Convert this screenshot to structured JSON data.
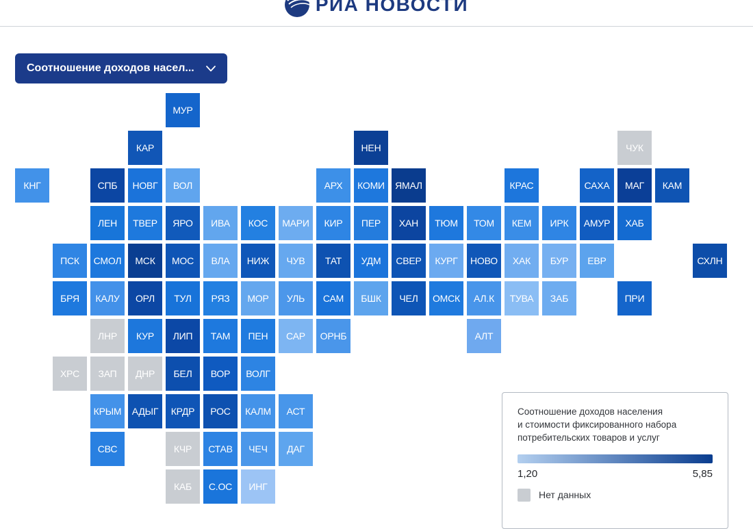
{
  "header": {
    "logo_text": "РИА НОВОСТИ"
  },
  "dropdown": {
    "label": "Соотношение доходов насел..."
  },
  "legend": {
    "title_line1": "Соотношение доходов населения",
    "title_line2": "и стоимости фиксированного набора",
    "title_line3": "потребительских товаров и услуг",
    "min_label": "1,20",
    "max_label": "5,85",
    "gradient_from": "#b3cfef",
    "gradient_to": "#0a3d8f",
    "no_data_label": "Нет данных",
    "no_data_color": "#c9cdd2"
  },
  "chart_data": {
    "type": "heatmap",
    "title": "Соотношение доходов населения и стоимости фиксированного набора потребительских товаров и услуг",
    "scale": {
      "min": 1.2,
      "max": 5.85
    },
    "no_data_label": "Нет данных",
    "tiles": [
      {
        "code": "МУР",
        "col": 4,
        "row": 0,
        "color": "#1465cb"
      },
      {
        "code": "КАР",
        "col": 3,
        "row": 1,
        "color": "#1156b6"
      },
      {
        "code": "НЕН",
        "col": 9,
        "row": 1,
        "color": "#0c4095"
      },
      {
        "code": "ЧУК",
        "col": 16,
        "row": 1,
        "color": "#c9cdd2"
      },
      {
        "code": "КНГ",
        "col": 0,
        "row": 2,
        "color": "#4292e9"
      },
      {
        "code": "СПБ",
        "col": 2,
        "row": 2,
        "color": "#0c46a3"
      },
      {
        "code": "НОВГ",
        "col": 3,
        "row": 2,
        "color": "#1b73da"
      },
      {
        "code": "ВОЛ",
        "col": 4,
        "row": 2,
        "color": "#60a5ee"
      },
      {
        "code": "АРХ",
        "col": 8,
        "row": 2,
        "color": "#3d90e8"
      },
      {
        "code": "КОМИ",
        "col": 9,
        "row": 2,
        "color": "#1e78dd"
      },
      {
        "code": "ЯМАЛ",
        "col": 10,
        "row": 2,
        "color": "#0a3c8e"
      },
      {
        "code": "КРАС",
        "col": 13,
        "row": 2,
        "color": "#1d76dc"
      },
      {
        "code": "САХА",
        "col": 15,
        "row": 2,
        "color": "#1463c8"
      },
      {
        "code": "МАГ",
        "col": 16,
        "row": 2,
        "color": "#0b3f97"
      },
      {
        "code": "КАМ",
        "col": 17,
        "row": 2,
        "color": "#0f54b3"
      },
      {
        "code": "ЛЕН",
        "col": 2,
        "row": 3,
        "color": "#1875d9"
      },
      {
        "code": "ТВЕР",
        "col": 3,
        "row": 3,
        "color": "#1e79dd"
      },
      {
        "code": "ЯРО",
        "col": 4,
        "row": 3,
        "color": "#115abb"
      },
      {
        "code": "ИВА",
        "col": 5,
        "row": 3,
        "color": "#62a6ee"
      },
      {
        "code": "КОС",
        "col": 6,
        "row": 3,
        "color": "#2380e1"
      },
      {
        "code": "МАРИ",
        "col": 7,
        "row": 3,
        "color": "#6dacf0"
      },
      {
        "code": "КИР",
        "col": 8,
        "row": 3,
        "color": "#2e85e4"
      },
      {
        "code": "ПЕР",
        "col": 9,
        "row": 3,
        "color": "#247cdd"
      },
      {
        "code": "ХАН",
        "col": 10,
        "row": 3,
        "color": "#0c45a0"
      },
      {
        "code": "ТЮМ",
        "col": 11,
        "row": 3,
        "color": "#1e78dd"
      },
      {
        "code": "ТОМ",
        "col": 12,
        "row": 3,
        "color": "#3389e6"
      },
      {
        "code": "КЕМ",
        "col": 13,
        "row": 3,
        "color": "#3a8de7"
      },
      {
        "code": "ИРК",
        "col": 14,
        "row": 3,
        "color": "#2f85e4"
      },
      {
        "code": "АМУР",
        "col": 15,
        "row": 3,
        "color": "#115cc0"
      },
      {
        "code": "ХАБ",
        "col": 16,
        "row": 3,
        "color": "#146bd1"
      },
      {
        "code": "ПСК",
        "col": 1,
        "row": 4,
        "color": "#2f85e4"
      },
      {
        "code": "СМОЛ",
        "col": 2,
        "row": 4,
        "color": "#1d78dd"
      },
      {
        "code": "МСК",
        "col": 3,
        "row": 4,
        "color": "#0a3e91"
      },
      {
        "code": "МОС",
        "col": 4,
        "row": 4,
        "color": "#0f55b6"
      },
      {
        "code": "ВЛА",
        "col": 5,
        "row": 4,
        "color": "#66a8ef"
      },
      {
        "code": "НИЖ",
        "col": 6,
        "row": 4,
        "color": "#0f57b9"
      },
      {
        "code": "ЧУВ",
        "col": 7,
        "row": 4,
        "color": "#66a8ef"
      },
      {
        "code": "ТАТ",
        "col": 8,
        "row": 4,
        "color": "#0e52b1"
      },
      {
        "code": "УДМ",
        "col": 9,
        "row": 4,
        "color": "#1b74db"
      },
      {
        "code": "СВЕР",
        "col": 10,
        "row": 4,
        "color": "#0e54b5"
      },
      {
        "code": "КУРГ",
        "col": 11,
        "row": 4,
        "color": "#6caaf0"
      },
      {
        "code": "НОВО",
        "col": 12,
        "row": 4,
        "color": "#1057b8"
      },
      {
        "code": "ХАК",
        "col": 13,
        "row": 4,
        "color": "#71adf0"
      },
      {
        "code": "БУР",
        "col": 14,
        "row": 4,
        "color": "#76b0f1"
      },
      {
        "code": "ЕВР",
        "col": 15,
        "row": 4,
        "color": "#5ca3ed"
      },
      {
        "code": "СХЛН",
        "col": 18,
        "row": 4,
        "color": "#0d4da9"
      },
      {
        "code": "БРЯ",
        "col": 1,
        "row": 5,
        "color": "#1e79de"
      },
      {
        "code": "КАЛУ",
        "col": 2,
        "row": 5,
        "color": "#4391e9"
      },
      {
        "code": "ОРЛ",
        "col": 3,
        "row": 5,
        "color": "#0c47a4"
      },
      {
        "code": "ТУЛ",
        "col": 4,
        "row": 5,
        "color": "#1873d9"
      },
      {
        "code": "РЯЗ",
        "col": 5,
        "row": 5,
        "color": "#2380e1"
      },
      {
        "code": "МОР",
        "col": 6,
        "row": 5,
        "color": "#64a7ee"
      },
      {
        "code": "УЛЬ",
        "col": 7,
        "row": 5,
        "color": "#4c97ea"
      },
      {
        "code": "САМ",
        "col": 8,
        "row": 5,
        "color": "#1a73da"
      },
      {
        "code": "БШК",
        "col": 9,
        "row": 5,
        "color": "#5da4ed"
      },
      {
        "code": "ЧЕЛ",
        "col": 10,
        "row": 5,
        "color": "#0e55b6"
      },
      {
        "code": "ОМСК",
        "col": 11,
        "row": 5,
        "color": "#1f7ade"
      },
      {
        "code": "АЛ.К",
        "col": 12,
        "row": 5,
        "color": "#4895ea"
      },
      {
        "code": "ТУВА",
        "col": 13,
        "row": 5,
        "color": "#8abdf4"
      },
      {
        "code": "ЗАБ",
        "col": 14,
        "row": 5,
        "color": "#6dacf0"
      },
      {
        "code": "ПРИ",
        "col": 16,
        "row": 5,
        "color": "#1465cb"
      },
      {
        "code": "ЛНР",
        "col": 2,
        "row": 6,
        "color": "#c9cdd2"
      },
      {
        "code": "КУР",
        "col": 3,
        "row": 6,
        "color": "#1d77dc"
      },
      {
        "code": "ЛИП",
        "col": 4,
        "row": 6,
        "color": "#0c48a6"
      },
      {
        "code": "ТАМ",
        "col": 5,
        "row": 6,
        "color": "#1e79de"
      },
      {
        "code": "ПЕН",
        "col": 6,
        "row": 6,
        "color": "#1f7bdf"
      },
      {
        "code": "САР",
        "col": 7,
        "row": 6,
        "color": "#7db5f2"
      },
      {
        "code": "ОРНБ",
        "col": 8,
        "row": 6,
        "color": "#4a96ea"
      },
      {
        "code": "АЛТ",
        "col": 12,
        "row": 6,
        "color": "#6fa9ef"
      },
      {
        "code": "ХРС",
        "col": 1,
        "row": 7,
        "color": "#c9cdd2"
      },
      {
        "code": "ЗАП",
        "col": 2,
        "row": 7,
        "color": "#c9cdd2"
      },
      {
        "code": "ДНР",
        "col": 3,
        "row": 7,
        "color": "#c9cdd2"
      },
      {
        "code": "БЕЛ",
        "col": 4,
        "row": 7,
        "color": "#0d4fae"
      },
      {
        "code": "ВОР",
        "col": 5,
        "row": 7,
        "color": "#0f5ac0"
      },
      {
        "code": "ВОЛГ",
        "col": 6,
        "row": 7,
        "color": "#2d84e3"
      },
      {
        "code": "КРЫМ",
        "col": 2,
        "row": 8,
        "color": "#4392e9"
      },
      {
        "code": "АДЫГ",
        "col": 3,
        "row": 8,
        "color": "#0e52b1"
      },
      {
        "code": "КРДР",
        "col": 4,
        "row": 8,
        "color": "#0f55b6"
      },
      {
        "code": "РОС",
        "col": 5,
        "row": 8,
        "color": "#0e51b0"
      },
      {
        "code": "КАЛМ",
        "col": 6,
        "row": 8,
        "color": "#4493e9"
      },
      {
        "code": "АСТ",
        "col": 7,
        "row": 8,
        "color": "#4896ea"
      },
      {
        "code": "СВС",
        "col": 2,
        "row": 9,
        "color": "#2980e1"
      },
      {
        "code": "КЧР",
        "col": 4,
        "row": 9,
        "color": "#c9cdd2"
      },
      {
        "code": "СТАВ",
        "col": 5,
        "row": 9,
        "color": "#2d83e3"
      },
      {
        "code": "ЧЕЧ",
        "col": 6,
        "row": 9,
        "color": "#4b97ea"
      },
      {
        "code": "ДАГ",
        "col": 7,
        "row": 9,
        "color": "#5ea5ee"
      },
      {
        "code": "КАБ",
        "col": 4,
        "row": 10,
        "color": "#c9cdd2"
      },
      {
        "code": "С.ОС",
        "col": 5,
        "row": 10,
        "color": "#1a75db"
      },
      {
        "code": "ИНГ",
        "col": 6,
        "row": 10,
        "color": "#9cc4f5"
      }
    ]
  }
}
